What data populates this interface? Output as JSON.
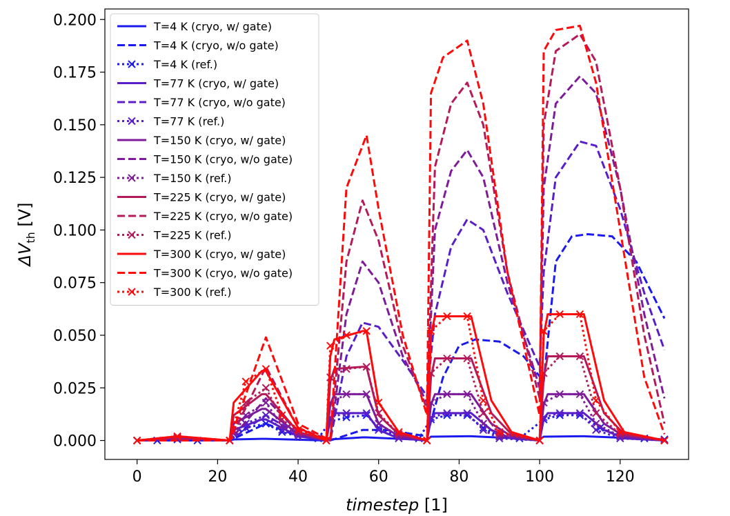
{
  "chart_data": {
    "type": "line",
    "title": "",
    "xlabel_main": "timestep",
    "xlabel_unit": " [1]",
    "ylabel_main": "ΔV",
    "ylabel_sub": "th",
    "ylabel_unit": " [V]",
    "xlim": [
      -8,
      137
    ],
    "ylim": [
      -0.009,
      0.205
    ],
    "xticks": [
      0,
      20,
      40,
      60,
      80,
      100,
      120
    ],
    "xtick_labels": [
      "0",
      "20",
      "40",
      "60",
      "80",
      "100",
      "120"
    ],
    "yticks": [
      0.0,
      0.025,
      0.05,
      0.075,
      0.1,
      0.125,
      0.15,
      0.175,
      0.2
    ],
    "ytick_labels": [
      "0.000",
      "0.025",
      "0.050",
      "0.075",
      "0.100",
      "0.125",
      "0.150",
      "0.175",
      "0.200"
    ],
    "grid": false,
    "legend_position": "top-left",
    "temperature_colors": {
      "4": "#1a1aee",
      "77": "#5a1ec8",
      "150": "#7d1b9a",
      "225": "#b41a5a",
      "300": "#ff0a0a"
    },
    "series": [
      {
        "name": "T=4 K (cryo, w/ gate)",
        "temperature": 4,
        "style": "solid",
        "x": [
          0,
          10,
          23,
          24,
          31,
          32,
          47,
          48,
          56,
          57,
          72,
          73,
          82,
          83,
          100,
          101,
          110,
          111,
          131
        ],
        "y": [
          0,
          0,
          0,
          0.0005,
          0.0008,
          0.0008,
          0,
          0.0005,
          0.0015,
          0.0015,
          0.0002,
          0.0018,
          0.002,
          0.002,
          0.0005,
          0.0018,
          0.002,
          0.002,
          0.0005
        ]
      },
      {
        "name": "T=4 K (cryo, w/o gate)",
        "temperature": 4,
        "style": "dashed",
        "x": [
          0,
          23,
          32,
          40,
          48,
          56,
          62,
          72,
          76,
          80,
          84,
          90,
          96,
          101,
          104,
          108,
          112,
          118,
          124,
          131
        ],
        "y": [
          0,
          0,
          0.008,
          0.002,
          0,
          0.005,
          0.005,
          0.002,
          0.03,
          0.045,
          0.048,
          0.047,
          0.04,
          0.028,
          0.085,
          0.097,
          0.098,
          0.097,
          0.085,
          0.058
        ]
      },
      {
        "name": "T=4 K (ref.)",
        "temperature": 4,
        "style": "dotted-x",
        "x": [
          0,
          5,
          10,
          15,
          23,
          27,
          32,
          36,
          40,
          45,
          48,
          52,
          57,
          60,
          65,
          70,
          73,
          77,
          82,
          86,
          90,
          95,
          101,
          105,
          110,
          115,
          120,
          126,
          131
        ],
        "y": [
          0,
          0,
          0.0005,
          0,
          0,
          0.006,
          0.008,
          0.004,
          0.002,
          0.001,
          0.009,
          0.011,
          0.012,
          0.006,
          0.002,
          0.001,
          0.01,
          0.012,
          0.012,
          0.006,
          0.002,
          0.001,
          0.01,
          0.012,
          0.012,
          0.006,
          0.002,
          0.001,
          0.0005
        ]
      },
      {
        "name": "T=77 K (cryo, w/ gate)",
        "temperature": 77,
        "style": "solid",
        "x": [
          0,
          10,
          23,
          24,
          31,
          32,
          40,
          47,
          48,
          49,
          56,
          57,
          60,
          65,
          72,
          73,
          74,
          82,
          83,
          88,
          93,
          100,
          101,
          102,
          110,
          111,
          116,
          121,
          131
        ],
        "y": [
          0,
          0.001,
          0,
          0.005,
          0.01,
          0.01,
          0.002,
          0,
          0.01,
          0.013,
          0.013,
          0.013,
          0.005,
          0.001,
          0,
          0.01,
          0.013,
          0.013,
          0.013,
          0.005,
          0.001,
          0,
          0.01,
          0.013,
          0.013,
          0.013,
          0.005,
          0.001,
          0
        ]
      },
      {
        "name": "T=77 K (cryo, w/o gate)",
        "temperature": 77,
        "style": "dashed",
        "x": [
          0,
          23,
          32,
          40,
          48,
          52,
          56,
          60,
          66,
          72,
          74,
          78,
          82,
          86,
          92,
          100,
          101,
          104,
          110,
          114,
          120,
          126,
          131
        ],
        "y": [
          0,
          0,
          0.012,
          0.003,
          0,
          0.04,
          0.056,
          0.054,
          0.038,
          0.021,
          0.06,
          0.092,
          0.105,
          0.1,
          0.07,
          0.035,
          0.08,
          0.125,
          0.142,
          0.14,
          0.11,
          0.07,
          0.043
        ]
      },
      {
        "name": "T=77 K (ref.)",
        "temperature": 77,
        "style": "dotted-x",
        "x": [
          0,
          10,
          23,
          27,
          32,
          36,
          40,
          47,
          48,
          52,
          57,
          60,
          65,
          72,
          73,
          77,
          82,
          86,
          90,
          100,
          101,
          105,
          110,
          114,
          120,
          131
        ],
        "y": [
          0,
          0.001,
          0,
          0.008,
          0.012,
          0.005,
          0.002,
          0,
          0.011,
          0.013,
          0.013,
          0.005,
          0.001,
          0,
          0.011,
          0.013,
          0.013,
          0.005,
          0.001,
          0,
          0.011,
          0.013,
          0.013,
          0.005,
          0.001,
          0
        ]
      },
      {
        "name": "T=150 K (cryo, w/ gate)",
        "temperature": 150,
        "style": "solid",
        "x": [
          0,
          10,
          23,
          24,
          31,
          32,
          40,
          47,
          48,
          49,
          56,
          57,
          60,
          65,
          72,
          73,
          74,
          82,
          83,
          88,
          93,
          100,
          101,
          102,
          110,
          111,
          116,
          121,
          131
        ],
        "y": [
          0,
          0.001,
          0,
          0.008,
          0.015,
          0.015,
          0.003,
          0,
          0.017,
          0.022,
          0.022,
          0.022,
          0.008,
          0.002,
          0,
          0.017,
          0.022,
          0.022,
          0.022,
          0.008,
          0.002,
          0,
          0.017,
          0.022,
          0.022,
          0.022,
          0.008,
          0.002,
          0
        ]
      },
      {
        "name": "T=150 K (cryo, w/o gate)",
        "temperature": 150,
        "style": "dashed",
        "x": [
          0,
          23,
          32,
          40,
          48,
          52,
          56,
          60,
          66,
          72,
          74,
          78,
          82,
          86,
          92,
          100,
          101,
          104,
          110,
          114,
          120,
          126,
          131
        ],
        "y": [
          0,
          0,
          0.02,
          0.004,
          0,
          0.06,
          0.085,
          0.075,
          0.04,
          0.018,
          0.1,
          0.128,
          0.138,
          0.125,
          0.075,
          0.025,
          0.12,
          0.16,
          0.173,
          0.165,
          0.12,
          0.06,
          0.02
        ]
      },
      {
        "name": "T=150 K (ref.)",
        "temperature": 150,
        "style": "dotted-x",
        "x": [
          0,
          10,
          23,
          27,
          32,
          36,
          40,
          47,
          48,
          52,
          57,
          60,
          65,
          72,
          73,
          77,
          82,
          86,
          90,
          100,
          101,
          105,
          110,
          114,
          120,
          131
        ],
        "y": [
          0,
          0.001,
          0,
          0.012,
          0.018,
          0.007,
          0.003,
          0,
          0.018,
          0.022,
          0.022,
          0.008,
          0.002,
          0,
          0.018,
          0.022,
          0.022,
          0.008,
          0.002,
          0,
          0.018,
          0.022,
          0.022,
          0.008,
          0.002,
          0
        ]
      },
      {
        "name": "T=225 K (cryo, w/ gate)",
        "temperature": 225,
        "style": "solid",
        "x": [
          0,
          10,
          23,
          24,
          31,
          32,
          40,
          47,
          48,
          49,
          56,
          57,
          60,
          65,
          72,
          73,
          74,
          82,
          83,
          88,
          93,
          100,
          101,
          102,
          110,
          111,
          116,
          121,
          131
        ],
        "y": [
          0,
          0.0015,
          0,
          0.012,
          0.022,
          0.022,
          0.004,
          0,
          0.028,
          0.034,
          0.035,
          0.035,
          0.012,
          0.003,
          0,
          0.03,
          0.039,
          0.039,
          0.039,
          0.013,
          0.003,
          0,
          0.03,
          0.04,
          0.04,
          0.04,
          0.013,
          0.003,
          0
        ]
      },
      {
        "name": "T=225 K (cryo, w/o gate)",
        "temperature": 225,
        "style": "dashed",
        "x": [
          0,
          23,
          32,
          40,
          48,
          52,
          56,
          60,
          66,
          72,
          74,
          78,
          82,
          86,
          92,
          100,
          101,
          104,
          110,
          114,
          120,
          126,
          131
        ],
        "y": [
          0,
          0,
          0.035,
          0.006,
          0,
          0.085,
          0.114,
          0.095,
          0.045,
          0.015,
          0.13,
          0.16,
          0.17,
          0.15,
          0.08,
          0.02,
          0.15,
          0.185,
          0.193,
          0.18,
          0.12,
          0.05,
          0.008
        ]
      },
      {
        "name": "T=225 K (ref.)",
        "temperature": 225,
        "style": "dotted-x",
        "x": [
          0,
          10,
          23,
          27,
          32,
          36,
          40,
          47,
          48,
          52,
          57,
          60,
          65,
          72,
          73,
          77,
          82,
          86,
          90,
          100,
          101,
          105,
          110,
          114,
          120,
          131
        ],
        "y": [
          0,
          0.0015,
          0,
          0.018,
          0.025,
          0.01,
          0.004,
          0,
          0.03,
          0.034,
          0.035,
          0.013,
          0.003,
          0,
          0.032,
          0.039,
          0.039,
          0.013,
          0.003,
          0,
          0.032,
          0.04,
          0.04,
          0.013,
          0.003,
          0
        ]
      },
      {
        "name": "T=300 K (cryo, w/ gate)",
        "temperature": 300,
        "style": "solid",
        "x": [
          0,
          10,
          23,
          24,
          31,
          32,
          40,
          47,
          48,
          49,
          56,
          57,
          60,
          65,
          72,
          73,
          74,
          82,
          83,
          88,
          93,
          100,
          101,
          102,
          110,
          111,
          116,
          121,
          131
        ],
        "y": [
          0,
          0.002,
          0,
          0.018,
          0.033,
          0.033,
          0.006,
          0,
          0.04,
          0.048,
          0.052,
          0.052,
          0.018,
          0.004,
          0,
          0.05,
          0.059,
          0.059,
          0.059,
          0.019,
          0.004,
          0,
          0.05,
          0.06,
          0.06,
          0.06,
          0.019,
          0.004,
          0
        ]
      },
      {
        "name": "T=300 K (cryo, w/o gate)",
        "temperature": 300,
        "style": "dashed",
        "x": [
          0,
          23,
          32,
          40,
          48,
          52,
          57,
          60,
          66,
          72,
          73,
          76,
          82,
          86,
          92,
          100,
          101,
          104,
          110,
          114,
          120,
          126,
          131
        ],
        "y": [
          0,
          0,
          0.049,
          0.008,
          0,
          0.12,
          0.145,
          0.11,
          0.05,
          0.012,
          0.165,
          0.182,
          0.19,
          0.16,
          0.08,
          0.012,
          0.185,
          0.195,
          0.197,
          0.17,
          0.1,
          0.03,
          0.003
        ]
      },
      {
        "name": "T=300 K (ref.)",
        "temperature": 300,
        "style": "dotted-x",
        "x": [
          0,
          10,
          23,
          27,
          32,
          36,
          40,
          47,
          48,
          52,
          57,
          60,
          65,
          72,
          73,
          77,
          82,
          86,
          90,
          100,
          101,
          105,
          110,
          114,
          120,
          131
        ],
        "y": [
          0,
          0.002,
          0,
          0.028,
          0.034,
          0.012,
          0.005,
          0,
          0.045,
          0.05,
          0.052,
          0.018,
          0.004,
          0,
          0.052,
          0.059,
          0.059,
          0.019,
          0.004,
          0,
          0.052,
          0.06,
          0.06,
          0.019,
          0.004,
          0
        ]
      }
    ]
  }
}
